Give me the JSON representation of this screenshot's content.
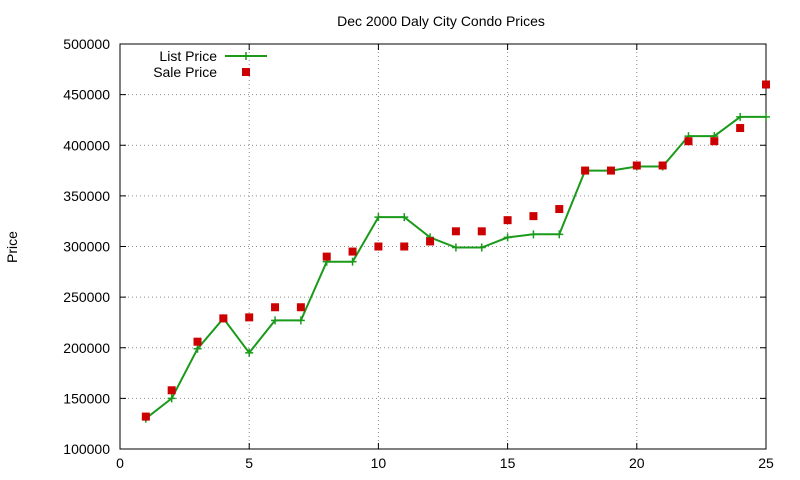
{
  "chart_data": {
    "type": "line",
    "title": "Dec 2000 Daly City Condo Prices",
    "xlabel": "",
    "ylabel": "Price",
    "xlim": [
      0,
      25
    ],
    "ylim": [
      100000,
      500000
    ],
    "x_ticks": [
      0,
      5,
      10,
      15,
      20,
      25
    ],
    "y_ticks": [
      100000,
      150000,
      200000,
      250000,
      300000,
      350000,
      400000,
      450000,
      500000
    ],
    "grid": true,
    "legend_position": "top-left",
    "series": [
      {
        "name": "List Price",
        "style": "line-plus",
        "color": "#1a9a1a",
        "points": [
          [
            1,
            130000
          ],
          [
            2,
            150000
          ],
          [
            3,
            199000
          ],
          [
            4,
            229000
          ],
          [
            5,
            195000
          ],
          [
            6,
            227000
          ],
          [
            7,
            227000
          ],
          [
            8,
            285000
          ],
          [
            9,
            285000
          ],
          [
            10,
            329000
          ],
          [
            11,
            329000
          ],
          [
            12,
            309000
          ],
          [
            13,
            299000
          ],
          [
            14,
            299000
          ],
          [
            15,
            309000
          ],
          [
            16,
            312000
          ],
          [
            17,
            312000
          ],
          [
            18,
            375000
          ],
          [
            19,
            375000
          ],
          [
            20,
            379000
          ],
          [
            21,
            379000
          ],
          [
            22,
            409000
          ],
          [
            23,
            409000
          ],
          [
            24,
            428000
          ],
          [
            25,
            428000
          ]
        ]
      },
      {
        "name": "Sale Price",
        "style": "squares",
        "color": "#cc0000",
        "points": [
          [
            1,
            132000
          ],
          [
            2,
            158000
          ],
          [
            3,
            206000
          ],
          [
            4,
            229000
          ],
          [
            5,
            230000
          ],
          [
            6,
            240000
          ],
          [
            7,
            240000
          ],
          [
            8,
            290000
          ],
          [
            9,
            295000
          ],
          [
            10,
            300000
          ],
          [
            11,
            300000
          ],
          [
            12,
            305000
          ],
          [
            13,
            315000
          ],
          [
            14,
            315000
          ],
          [
            15,
            326000
          ],
          [
            16,
            330000
          ],
          [
            17,
            337000
          ],
          [
            18,
            375000
          ],
          [
            19,
            375000
          ],
          [
            20,
            380000
          ],
          [
            21,
            380000
          ],
          [
            22,
            404000
          ],
          [
            23,
            404000
          ],
          [
            24,
            417000
          ],
          [
            25,
            460000
          ]
        ]
      }
    ]
  }
}
